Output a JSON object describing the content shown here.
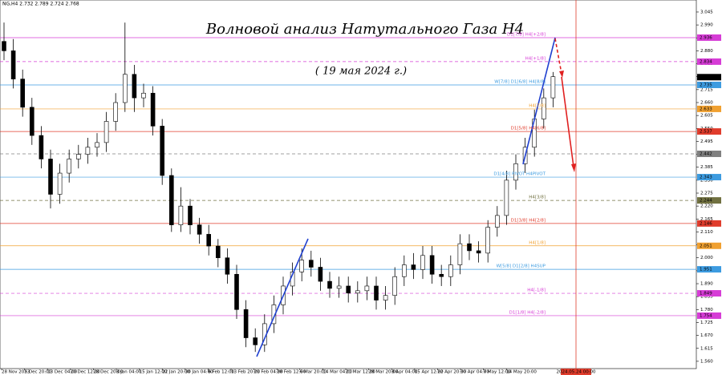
{
  "chart_data": {
    "type": "candlestick",
    "header": "NG,H4 2.732 2.789 2.724 2.768",
    "title": "Волновой анализ Натутального Газа H4",
    "subtitle": "( 19 мая 2024 г.)",
    "ylim": [
      1.529,
      3.096
    ],
    "yticks": [
      3.045,
      {
        "value": 2.99,
        "label": "2.990"
      },
      2.935,
      {
        "value": 2.88,
        "label": "2.880"
      },
      2.825,
      {
        "value": 2.77,
        "label": "2.770"
      },
      2.715,
      {
        "value": 2.66,
        "label": "2.660"
      },
      2.605,
      {
        "value": 2.55,
        "label": "2.550"
      },
      2.495,
      {
        "value": 2.44,
        "label": "2.440"
      },
      2.385,
      {
        "value": 2.33,
        "label": "2.330"
      },
      2.275,
      {
        "value": 2.22,
        "label": "2.220"
      },
      2.165,
      {
        "value": 2.11,
        "label": "2.110"
      },
      2.055,
      {
        "value": 2.0,
        "label": "2.000"
      },
      1.945,
      {
        "value": 1.89,
        "label": "1.890"
      },
      1.835,
      {
        "value": 1.78,
        "label": "1.780"
      },
      1.725,
      {
        "value": 1.67,
        "label": "1.670"
      },
      1.615,
      {
        "value": 1.56,
        "label": "1.560"
      }
    ],
    "x_labels": [
      "28 Nov 2023",
      "5 Dec 20:00",
      "13 Dec 04:00",
      "20 Dec 12:00",
      "28 Dec 20:00",
      "8 Jan 04:00",
      "15 Jan 12:00",
      "22 Jan 20:00",
      "30 Jan 04:00",
      "6 Feb 12:00",
      "13 Feb 20:00",
      "21 Feb 04:00",
      "28 Feb 12:00",
      "6 Mar 20:00",
      "14 Mar 04:00",
      "21 Mar 12:00",
      "28 Mar 20:00",
      "8 Apr 04:00",
      "15 Apr 12:00",
      "22 Apr 20:00",
      "30 Apr 04:00",
      "7 May 12:00",
      "14 May 20:00"
    ],
    "marker_date": "2024.05.24 00:00",
    "current_price": 2.768,
    "open": [
      2.92,
      2.88,
      2.76,
      2.64,
      2.52,
      2.42,
      2.27,
      2.36,
      2.42,
      2.44,
      2.47,
      2.49,
      2.58,
      2.66,
      2.78,
      2.68,
      2.7,
      2.56,
      2.35,
      2.14,
      2.22,
      2.14,
      2.1,
      2.05,
      2.0,
      1.93,
      1.78,
      1.66,
      1.63,
      1.72,
      1.8,
      1.88,
      1.94,
      1.99,
      1.96,
      1.9,
      1.87,
      1.88,
      1.85,
      1.86,
      1.88,
      1.82,
      1.84,
      1.92,
      1.97,
      1.95,
      2.01,
      1.93,
      1.92,
      1.97,
      2.06,
      2.03,
      2.02,
      2.13,
      2.18,
      2.33,
      2.4,
      2.47,
      2.59,
      2.68
    ],
    "high": [
      3.0,
      2.93,
      2.8,
      2.68,
      2.56,
      2.46,
      2.4,
      2.46,
      2.48,
      2.51,
      2.53,
      2.62,
      2.7,
      3.0,
      2.82,
      2.74,
      2.73,
      2.59,
      2.38,
      2.3,
      2.25,
      2.17,
      2.14,
      2.08,
      2.04,
      1.97,
      1.82,
      1.7,
      1.76,
      1.84,
      1.92,
      1.98,
      2.04,
      2.03,
      2.0,
      1.94,
      1.92,
      1.92,
      1.9,
      1.92,
      1.92,
      1.88,
      1.96,
      2.01,
      2.02,
      2.05,
      2.05,
      1.97,
      2.01,
      2.1,
      2.1,
      2.07,
      2.16,
      2.22,
      2.37,
      2.44,
      2.51,
      2.63,
      2.72,
      2.79
    ],
    "low": [
      2.84,
      2.72,
      2.6,
      2.48,
      2.38,
      2.21,
      2.23,
      2.32,
      2.38,
      2.4,
      2.43,
      2.45,
      2.54,
      2.62,
      2.62,
      2.64,
      2.52,
      2.31,
      2.11,
      2.11,
      2.1,
      2.06,
      2.01,
      1.96,
      1.89,
      1.74,
      1.62,
      1.6,
      1.6,
      1.68,
      1.76,
      1.84,
      1.9,
      1.92,
      1.86,
      1.83,
      1.83,
      1.81,
      1.81,
      1.82,
      1.78,
      1.78,
      1.8,
      1.88,
      1.91,
      1.91,
      1.89,
      1.88,
      1.88,
      1.93,
      1.99,
      1.98,
      1.98,
      2.09,
      2.14,
      2.29,
      2.36,
      2.43,
      2.55,
      2.64
    ],
    "close": [
      2.88,
      2.76,
      2.64,
      2.52,
      2.42,
      2.27,
      2.36,
      2.42,
      2.44,
      2.47,
      2.49,
      2.58,
      2.66,
      2.78,
      2.68,
      2.7,
      2.56,
      2.35,
      2.14,
      2.22,
      2.14,
      2.1,
      2.05,
      2.0,
      1.93,
      1.78,
      1.66,
      1.63,
      1.72,
      1.8,
      1.88,
      1.94,
      1.99,
      1.96,
      1.9,
      1.87,
      1.88,
      1.85,
      1.86,
      1.88,
      1.82,
      1.84,
      1.92,
      1.97,
      1.95,
      2.01,
      1.93,
      1.92,
      1.97,
      2.06,
      2.03,
      2.02,
      2.13,
      2.18,
      2.33,
      2.4,
      2.47,
      2.59,
      2.68,
      2.77
    ],
    "levels": [
      {
        "value": 2.936,
        "label": "D1[7/8] H4[+2/8]",
        "color": "#d63cd6",
        "dashed": false
      },
      {
        "value": 2.834,
        "label": "H4[+1/8]",
        "color": "#d63cd6",
        "dashed": true
      },
      {
        "value": 2.735,
        "label": "W[7/8] D1[6/8] H4[8/8]",
        "color": "#3c9be0",
        "dashed": false
      },
      {
        "value": 2.633,
        "label": "H4[7/8]",
        "color": "#f0a030",
        "dashed": false
      },
      {
        "value": 2.537,
        "label": "D1[5/8] H4[6/8]",
        "color": "#e03c2c",
        "dashed": false
      },
      {
        "value": 2.442,
        "color": "#808080",
        "dashed": true
      },
      {
        "value": 2.343,
        "label": "D1[4/8] PIVOT H4PIVOT",
        "color": "#3c9be0",
        "dashed": false
      },
      {
        "value": 2.244,
        "label": "H4[3/8]",
        "color": "#707040",
        "dashed": true
      },
      {
        "value": 2.146,
        "label": "D1[3/8] H4[2/8]",
        "color": "#e03c2c",
        "dashed": false
      },
      {
        "value": 2.051,
        "label": "H4[1/8]",
        "color": "#f0a030",
        "dashed": false
      },
      {
        "value": 1.951,
        "label": "W[5/8] D1[2/8] H4SUP",
        "color": "#3c9be0",
        "dashed": false
      },
      {
        "value": 1.849,
        "label": "H4[-1/8]",
        "color": "#d63cd6",
        "dashed": true
      },
      {
        "value": 1.754,
        "label": "D1[1/8] H4[-2/8]",
        "color": "#d63cd6",
        "dashed": false
      }
    ]
  }
}
